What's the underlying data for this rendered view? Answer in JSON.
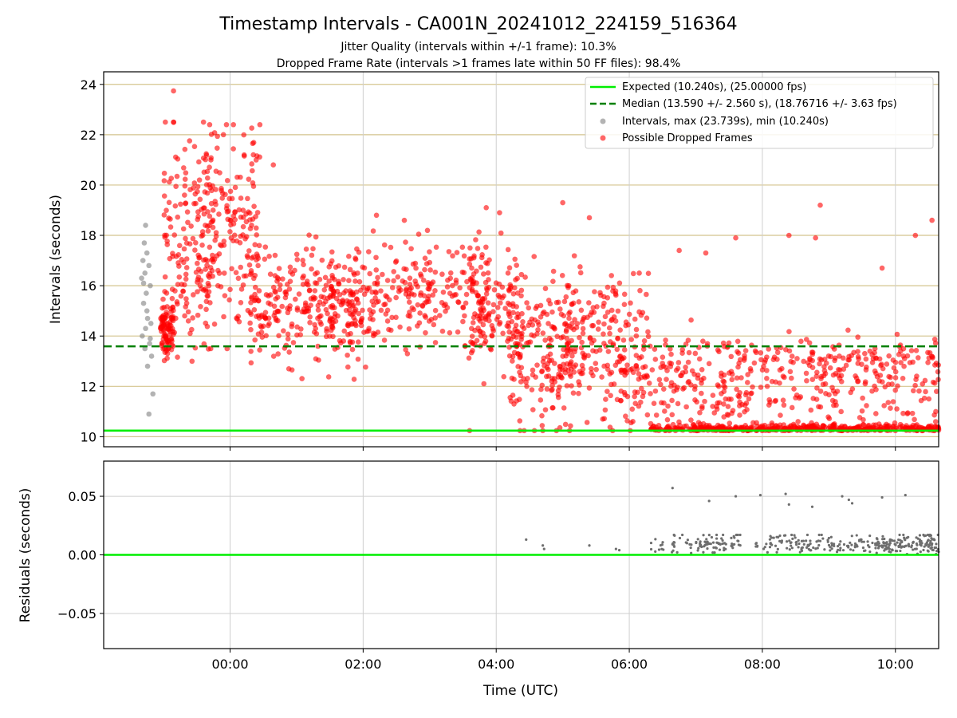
{
  "figure": {
    "title": "Timestamp Intervals - CA001N_20241012_224159_516364",
    "subtitle_line1": "Jitter Quality (intervals within +/-1 frame): 10.3%",
    "subtitle_line2": "Dropped Frame Rate (intervals >1 frames late within 50 FF files): 98.4%"
  },
  "colors": {
    "expected": "#00ee00",
    "median": "#008000",
    "normal_points": "#808080",
    "dropped_points": "#ff0000",
    "hgrid_top": "#d4c48e",
    "grid": "#cfcfcf",
    "residual_points": "#6e6e6e"
  },
  "chart_data": [
    {
      "type": "scatter",
      "panel": "top",
      "ylabel": "Intervals (seconds)",
      "ylim": [
        9.6,
        24.5
      ],
      "yticks": [
        10,
        12,
        14,
        16,
        18,
        20,
        22,
        24
      ],
      "xlim_hours": [
        -1.9,
        10.65
      ],
      "grid": "on",
      "legend_placement": "top-right",
      "legend": [
        "Expected (10.240s), (25.00000 fps)",
        "Median (13.590 +/- 2.560 s), (18.76716 +/- 3.63 fps)",
        "Intervals, max (23.739s), min (10.240s)",
        "Possible Dropped Frames"
      ],
      "reference_lines": {
        "expected": 10.24,
        "median": 13.59
      },
      "series": [
        {
          "name": "Intervals, max (23.739s), min (10.240s)",
          "points": [
            [
              -1.27,
              18.4
            ],
            [
              -1.29,
              17.7
            ],
            [
              -1.25,
              17.3
            ],
            [
              -1.31,
              17.0
            ],
            [
              -1.22,
              16.8
            ],
            [
              -1.28,
              16.5
            ],
            [
              -1.33,
              16.3
            ],
            [
              -1.2,
              16.0
            ],
            [
              -1.26,
              15.7
            ],
            [
              -1.3,
              15.3
            ],
            [
              -1.24,
              14.7
            ],
            [
              -1.19,
              14.5
            ],
            [
              -1.27,
              14.3
            ],
            [
              -1.32,
              14.0
            ],
            [
              -1.21,
              13.7
            ],
            [
              -1.28,
              13.5
            ],
            [
              -1.18,
              13.2
            ],
            [
              -1.24,
              12.8
            ],
            [
              -1.16,
              11.7
            ],
            [
              -1.22,
              10.9
            ],
            [
              -1.3,
              16.1
            ],
            [
              -1.25,
              15.0
            ],
            [
              -1.2,
              13.9
            ]
          ]
        },
        {
          "name": "Possible Dropped Frames",
          "summary": "approx. 2700 points; dense cloud 14-22 s around 00:00, 13-18 s from 00:30 to 04:00, spreading down to 10.24 s floor after 05:00",
          "anchors": [
            [
              -0.85,
              23.74
            ],
            [
              -0.85,
              22.5
            ],
            [
              -0.1,
              22.0
            ],
            [
              0.05,
              22.4
            ],
            [
              0.35,
              21.2
            ],
            [
              0.65,
              20.8
            ],
            [
              2.2,
              18.8
            ],
            [
              3.85,
              19.1
            ],
            [
              4.05,
              18.9
            ],
            [
              5.0,
              19.3
            ],
            [
              5.4,
              18.7
            ],
            [
              6.15,
              16.5
            ],
            [
              6.75,
              17.4
            ],
            [
              7.15,
              17.3
            ],
            [
              7.6,
              17.9
            ],
            [
              8.4,
              18.0
            ],
            [
              8.8,
              17.9
            ],
            [
              8.87,
              19.2
            ],
            [
              9.8,
              16.7
            ],
            [
              10.3,
              18.0
            ],
            [
              10.55,
              18.6
            ],
            [
              3.6,
              10.24
            ],
            [
              4.7,
              10.24
            ],
            [
              5.75,
              10.24
            ],
            [
              6.6,
              10.24
            ],
            [
              7.5,
              10.24
            ],
            [
              8.3,
              10.24
            ],
            [
              9.2,
              10.24
            ],
            [
              10.0,
              10.24
            ]
          ]
        }
      ]
    },
    {
      "type": "scatter",
      "panel": "bottom",
      "ylabel": "Residuals (seconds)",
      "xlabel": "Time (UTC)",
      "ylim": [
        -0.08,
        0.08
      ],
      "yticks": [
        0.05,
        0.0,
        -0.05
      ],
      "ytick_labels": [
        "0.05",
        "0.00",
        "−0.05"
      ],
      "xticks_hours": [
        0,
        2,
        4,
        6,
        8,
        10
      ],
      "xtick_labels": [
        "00:00",
        "02:00",
        "04:00",
        "06:00",
        "08:00",
        "10:00"
      ],
      "reference_line": 0.0,
      "outliers": [
        [
          6.65,
          0.057
        ],
        [
          7.2,
          0.046
        ],
        [
          7.6,
          0.05
        ],
        [
          7.97,
          0.051
        ],
        [
          8.35,
          0.052
        ],
        [
          8.4,
          0.043
        ],
        [
          8.75,
          0.041
        ],
        [
          9.2,
          0.05
        ],
        [
          9.3,
          0.047
        ],
        [
          9.35,
          0.044
        ],
        [
          9.8,
          0.049
        ],
        [
          10.15,
          0.051
        ],
        [
          4.45,
          0.013
        ],
        [
          4.7,
          0.008
        ],
        [
          4.72,
          0.005
        ],
        [
          5.4,
          0.008
        ],
        [
          5.8,
          0.005
        ],
        [
          5.85,
          0.004
        ]
      ],
      "summary": "residuals mostly 0.000-0.016 s after 06:00"
    }
  ]
}
